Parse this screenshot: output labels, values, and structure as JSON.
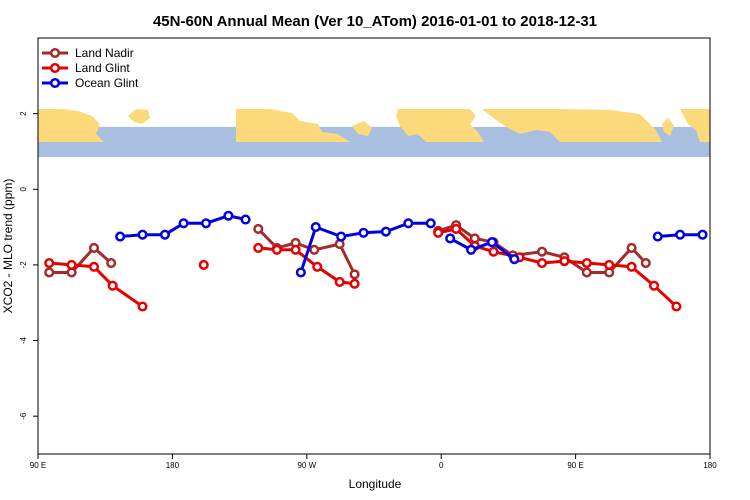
{
  "chart_data": {
    "type": "line",
    "title": "45N-60N Annual Mean (Ver 10_ATom)   2016-01-01 to 2018-12-31",
    "xlabel": "Longitude",
    "ylabel": "XCO2 - MLO trend (ppm)",
    "x_unwrapped_range": [
      90,
      450
    ],
    "x_ticks": [
      {
        "x": 90,
        "label": "90 E"
      },
      {
        "x": 180,
        "label": "180"
      },
      {
        "x": 270,
        "label": "90 W"
      },
      {
        "x": 360,
        "label": "0"
      },
      {
        "x": 450,
        "label": "90 E"
      },
      {
        "x": 540,
        "label": "180"
      }
    ],
    "xlim": [
      90,
      540
    ],
    "ylim": [
      -7,
      4
    ],
    "y_ticks": [
      2,
      0,
      -2,
      -4,
      -6
    ],
    "grid": false,
    "legend_position": "top-left",
    "map_band": {
      "y_range": [
        0.85,
        1.65
      ],
      "ocean_color": "#a8bfdf",
      "land_color": "#fcd97a"
    },
    "series": [
      {
        "name": "Land Nadir",
        "color": "#a52a2a",
        "segments": [
          [
            [
              97.5,
              -2.2
            ],
            [
              112.5,
              -2.2
            ],
            [
              127.5,
              -1.55
            ],
            [
              139,
              -1.95
            ]
          ],
          [
            [
              237.5,
              -1.05
            ],
            [
              250,
              -1.55
            ],
            [
              262.5,
              -1.42
            ],
            [
              275,
              -1.6
            ],
            [
              292,
              -1.45
            ],
            [
              302,
              -2.25
            ]
          ],
          [
            [
              358,
              -1.1
            ],
            [
              370,
              -0.95
            ],
            [
              382.5,
              -1.3
            ],
            [
              395,
              -1.4
            ],
            [
              408,
              -1.75
            ],
            [
              427.5,
              -1.65
            ],
            [
              442.5,
              -1.8
            ],
            [
              457.5,
              -2.2
            ],
            [
              472.5,
              -2.2
            ],
            [
              487.5,
              -1.55
            ],
            [
              497,
              -1.95
            ]
          ]
        ]
      },
      {
        "name": "Land Glint",
        "color": "#e60000",
        "segments": [
          [
            [
              97.5,
              -1.95
            ],
            [
              112.5,
              -2.0
            ],
            [
              127.5,
              -2.05
            ],
            [
              140,
              -2.55
            ],
            [
              160,
              -3.1
            ]
          ],
          [
            [
              201,
              -2.0
            ]
          ],
          [
            [
              237.5,
              -1.55
            ],
            [
              250,
              -1.6
            ],
            [
              262.5,
              -1.6
            ],
            [
              277,
              -2.05
            ],
            [
              292,
              -2.45
            ],
            [
              302,
              -2.5
            ]
          ],
          [
            [
              358,
              -1.15
            ],
            [
              370,
              -1.05
            ],
            [
              382.5,
              -1.5
            ],
            [
              395,
              -1.65
            ],
            [
              412.5,
              -1.8
            ],
            [
              427.5,
              -1.95
            ],
            [
              442.5,
              -1.9
            ],
            [
              457.5,
              -1.95
            ],
            [
              472.5,
              -2.0
            ],
            [
              487.5,
              -2.05
            ],
            [
              502.5,
              -2.55
            ],
            [
              517.5,
              -3.1
            ]
          ]
        ]
      },
      {
        "name": "Ocean Glint",
        "color": "#0000e6",
        "segments": [
          [
            [
              145,
              -1.25
            ],
            [
              160,
              -1.2
            ],
            [
              175,
              -1.2
            ],
            [
              187.5,
              -0.9
            ],
            [
              202.5,
              -0.9
            ],
            [
              217.5,
              -0.7
            ],
            [
              229,
              -0.8
            ]
          ],
          [
            [
              266,
              -2.2
            ],
            [
              276,
              -1.0
            ],
            [
              293,
              -1.25
            ],
            [
              308,
              -1.15
            ],
            [
              323,
              -1.12
            ],
            [
              338,
              -0.9
            ],
            [
              353,
              -0.9
            ]
          ],
          [
            [
              366,
              -1.3
            ],
            [
              380,
              -1.6
            ],
            [
              394,
              -1.4
            ],
            [
              409,
              -1.85
            ]
          ],
          [
            [
              505,
              -1.25
            ],
            [
              520,
              -1.2
            ],
            [
              535,
              -1.2
            ]
          ]
        ]
      }
    ]
  }
}
